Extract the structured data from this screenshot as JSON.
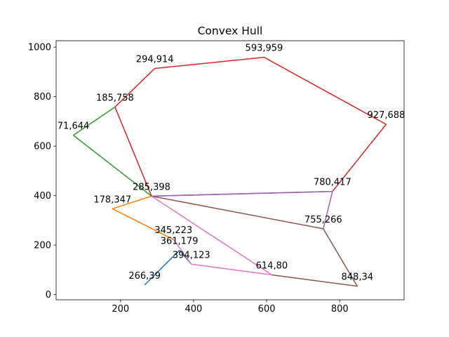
{
  "chart_data": {
    "type": "line",
    "title": "Convex Hull",
    "xlabel": "",
    "ylabel": "",
    "xlim": [
      23.9,
      976.1
    ],
    "ylim": [
      -20.85,
      1025.95
    ],
    "xticks": [
      200,
      400,
      600,
      800
    ],
    "yticks": [
      0,
      200,
      400,
      600,
      800,
      1000
    ],
    "grid": false,
    "legend": "none",
    "series": [
      {
        "color": "#1f77b4",
        "points": [
          [
            266,
            39
          ],
          [
            361,
            179
          ],
          [
            394,
            123
          ]
        ]
      },
      {
        "color": "#ff7f0e",
        "points": [
          [
            285,
            398
          ],
          [
            178,
            347
          ],
          [
            345,
            223
          ]
        ]
      },
      {
        "color": "#2ca02c",
        "points": [
          [
            185,
            758
          ],
          [
            71,
            644
          ],
          [
            285,
            398
          ]
        ]
      },
      {
        "color": "#d62728",
        "points": [
          [
            185,
            758
          ],
          [
            294,
            914
          ],
          [
            593,
            959
          ],
          [
            927,
            688
          ],
          [
            780,
            417
          ],
          [
            285,
            398
          ],
          [
            185,
            758
          ]
        ]
      },
      {
        "color": "#9467bd",
        "points": [
          [
            285,
            398
          ],
          [
            780,
            417
          ],
          [
            755,
            266
          ]
        ]
      },
      {
        "color": "#8c564b",
        "points": [
          [
            285,
            398
          ],
          [
            755,
            266
          ],
          [
            848,
            34
          ],
          [
            614,
            80
          ]
        ]
      },
      {
        "color": "#e377c2",
        "points": [
          [
            285,
            398
          ],
          [
            614,
            80
          ],
          [
            394,
            123
          ],
          [
            345,
            223
          ]
        ]
      }
    ],
    "point_labels": [
      {
        "x": 294,
        "y": 914,
        "text": "294,914"
      },
      {
        "x": 593,
        "y": 959,
        "text": "593,959"
      },
      {
        "x": 185,
        "y": 758,
        "text": "185,758"
      },
      {
        "x": 927,
        "y": 688,
        "text": "927,688"
      },
      {
        "x": 71,
        "y": 644,
        "text": "71,644"
      },
      {
        "x": 285,
        "y": 398,
        "text": "285,398"
      },
      {
        "x": 780,
        "y": 417,
        "text": "780,417"
      },
      {
        "x": 178,
        "y": 347,
        "text": "178,347"
      },
      {
        "x": 755,
        "y": 266,
        "text": "755,266"
      },
      {
        "x": 345,
        "y": 223,
        "text": "345,223"
      },
      {
        "x": 361,
        "y": 179,
        "text": "361,179"
      },
      {
        "x": 394,
        "y": 123,
        "text": "394,123"
      },
      {
        "x": 614,
        "y": 80,
        "text": "614,80"
      },
      {
        "x": 266,
        "y": 39,
        "text": "266,39"
      },
      {
        "x": 848,
        "y": 34,
        "text": "848,34"
      }
    ]
  }
}
